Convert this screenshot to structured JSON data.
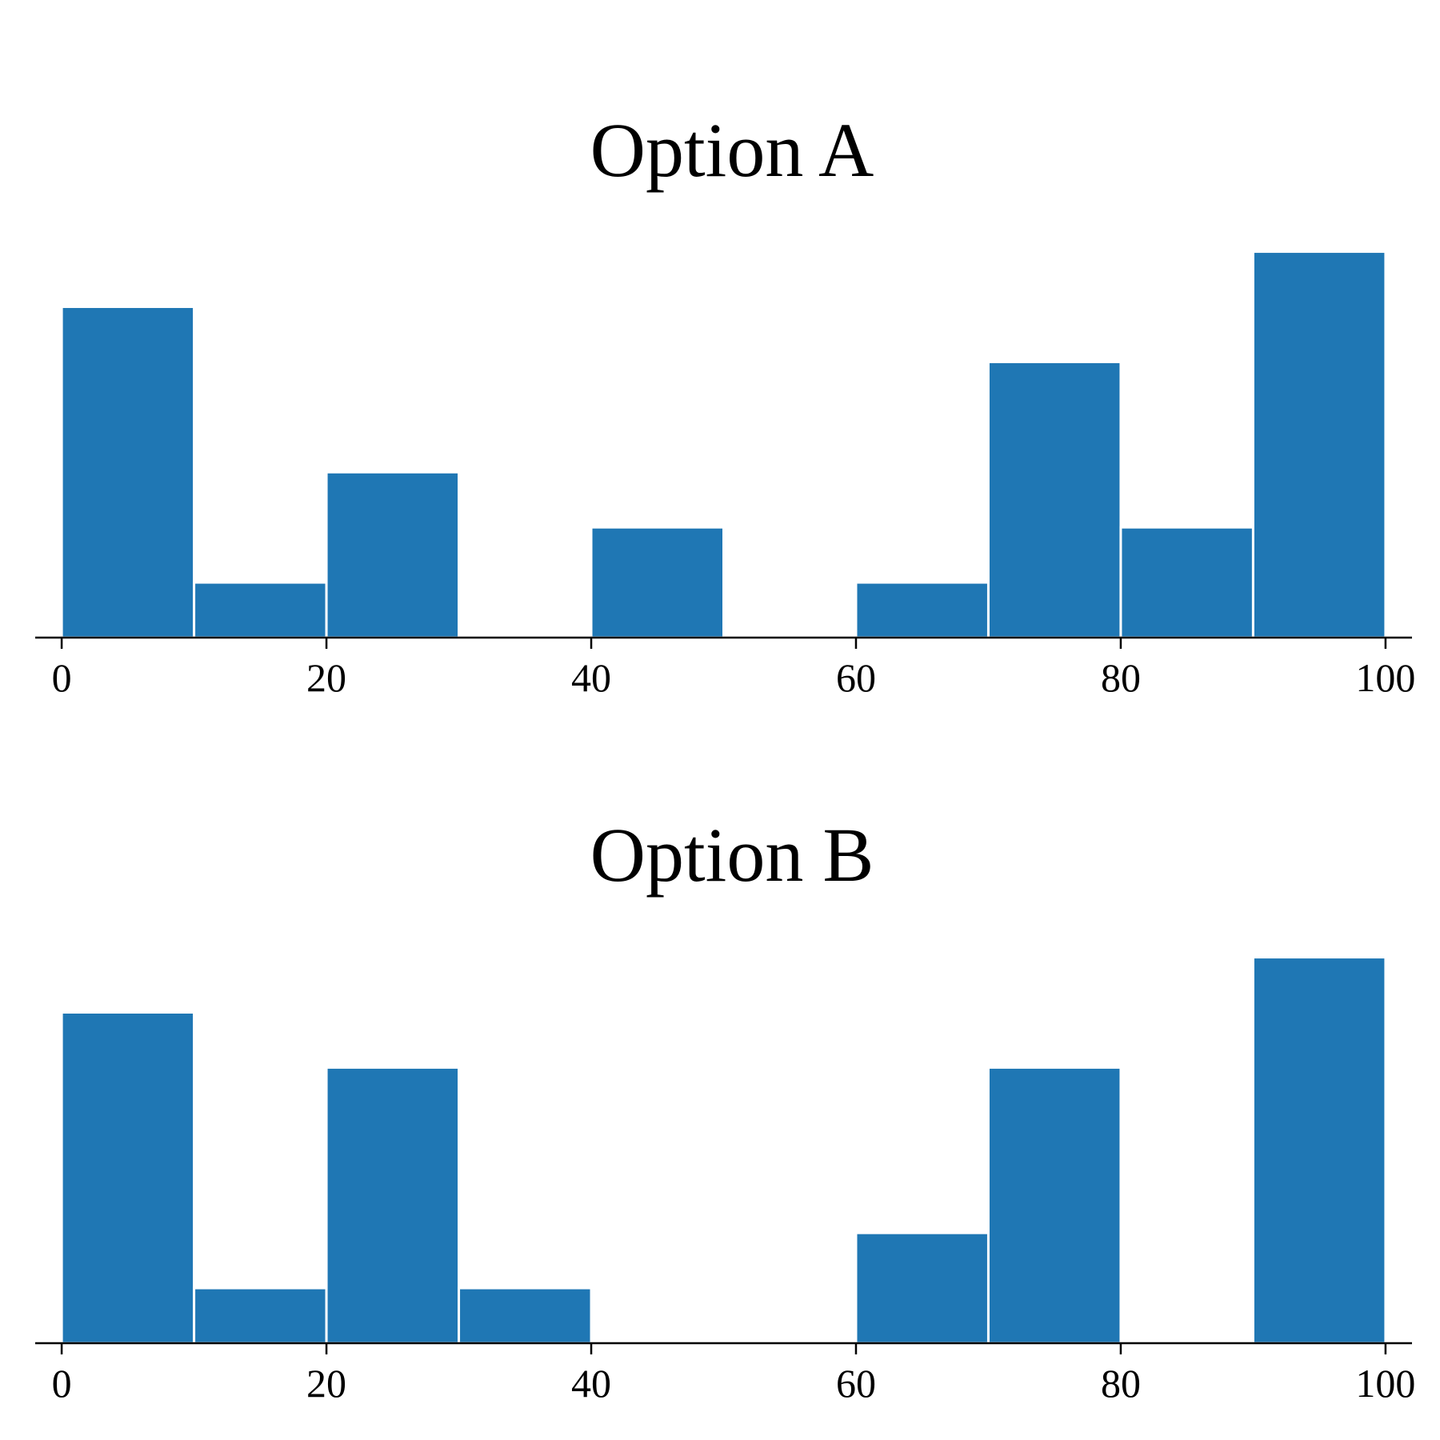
{
  "chart_data": [
    {
      "type": "bar",
      "title": "Option A",
      "bin_edges": [
        0,
        10,
        20,
        30,
        40,
        50,
        60,
        70,
        80,
        90,
        100
      ],
      "values": [
        6,
        1,
        3,
        0,
        2,
        0,
        1,
        5,
        2,
        7
      ],
      "xlim": [
        -2,
        102
      ],
      "ylim": [
        0,
        7.4
      ],
      "xticks": [
        0,
        20,
        40,
        60,
        80,
        100
      ],
      "xtick_labels": [
        "0",
        "20",
        "40",
        "60",
        "80",
        "100"
      ],
      "yaxis_visible": false,
      "grid": false,
      "color": "#1f77b4"
    },
    {
      "type": "bar",
      "title": "Option B",
      "bin_edges": [
        0,
        10,
        20,
        30,
        40,
        50,
        60,
        70,
        80,
        90,
        100
      ],
      "values": [
        6,
        1,
        5,
        1,
        0,
        0,
        2,
        5,
        0,
        7
      ],
      "xlim": [
        -2,
        102
      ],
      "ylim": [
        0,
        7.4
      ],
      "xticks": [
        0,
        20,
        40,
        60,
        80,
        100
      ],
      "xtick_labels": [
        "0",
        "20",
        "40",
        "60",
        "80",
        "100"
      ],
      "yaxis_visible": false,
      "grid": false,
      "color": "#1f77b4"
    }
  ]
}
